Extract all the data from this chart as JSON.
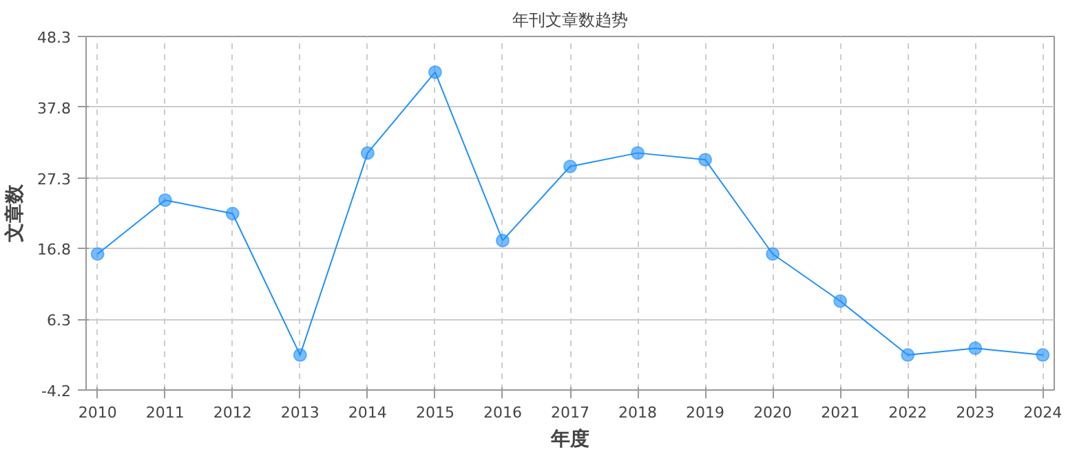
{
  "chart_data": {
    "type": "line",
    "title": "年刊文章数趋势",
    "xlabel": "年度",
    "ylabel": "文章数",
    "categories": [
      "2010",
      "2011",
      "2012",
      "2013",
      "2014",
      "2015",
      "2016",
      "2017",
      "2018",
      "2019",
      "2020",
      "2021",
      "2022",
      "2023",
      "2024"
    ],
    "series": [
      {
        "color": "#1e90ff",
        "values": [
          16,
          24,
          22,
          1,
          31,
          43,
          18,
          29,
          31,
          30,
          16,
          9,
          1,
          2,
          1
        ]
      }
    ],
    "ylim": [
      -4.2,
      48.3
    ],
    "yticks": [
      -4.2,
      6.3,
      16.8,
      27.3,
      37.8,
      48.3
    ],
    "grid": true,
    "marker": "circle",
    "line_style": "solid"
  }
}
